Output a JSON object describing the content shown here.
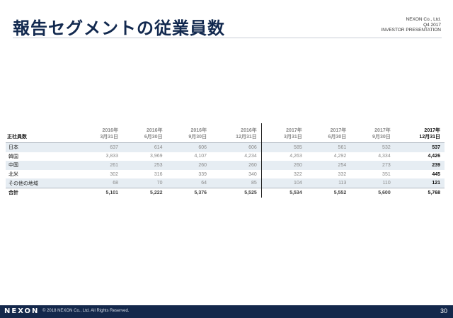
{
  "title": "報告セグメントの従業員数",
  "company": {
    "name": "NEXON Co., Ltd.",
    "period": "Q4 2017",
    "doc": "INVESTOR PRESENTATION"
  },
  "table": {
    "label_header": "正社員数",
    "columns": [
      {
        "year": "2016年",
        "date": "3月31日"
      },
      {
        "year": "2016年",
        "date": "6月30日"
      },
      {
        "year": "2016年",
        "date": "9月30日"
      },
      {
        "year": "2016年",
        "date": "12月31日"
      },
      {
        "year": "2017年",
        "date": "3月31日"
      },
      {
        "year": "2017年",
        "date": "6月30日"
      },
      {
        "year": "2017年",
        "date": "9月30日"
      },
      {
        "year": "2017年",
        "date": "12月31日"
      }
    ],
    "rows": [
      {
        "label": "日本",
        "values": [
          "637",
          "614",
          "606",
          "606",
          "585",
          "561",
          "532",
          "537"
        ]
      },
      {
        "label": "韓国",
        "values": [
          "3,833",
          "3,969",
          "4,107",
          "4,234",
          "4,263",
          "4,292",
          "4,334",
          "4,426"
        ]
      },
      {
        "label": "中国",
        "values": [
          "261",
          "253",
          "260",
          "260",
          "260",
          "254",
          "273",
          "239"
        ]
      },
      {
        "label": "北米",
        "values": [
          "302",
          "316",
          "339",
          "340",
          "322",
          "332",
          "351",
          "445"
        ]
      },
      {
        "label": "その他の地域",
        "values": [
          "68",
          "70",
          "64",
          "85",
          "104",
          "113",
          "110",
          "121"
        ]
      },
      {
        "label": "合計",
        "values": [
          "5,101",
          "5,222",
          "5,376",
          "5,525",
          "5,534",
          "5,552",
          "5,600",
          "5,768"
        ]
      }
    ]
  },
  "footer": {
    "logo": "NEXON",
    "copyright": "© 2018 NEXON Co., Ltd. All Rights Reserved.",
    "page": "30"
  }
}
